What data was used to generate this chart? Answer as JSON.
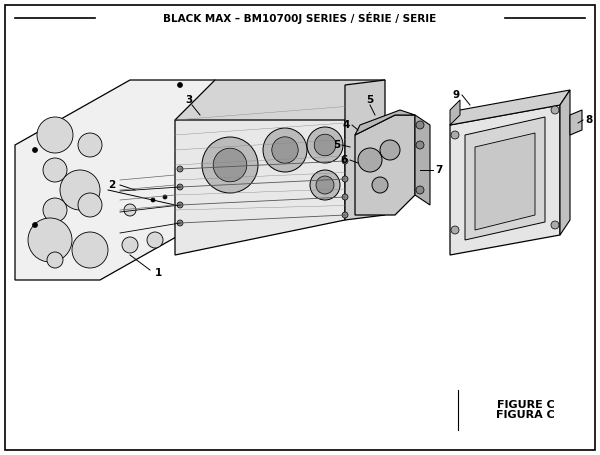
{
  "title": "BLACK MAX – BM10700J SERIES / SÉRIE / SERIE",
  "figure_label": "FIGURE C",
  "figura_label": "FIGURA C",
  "bg_color": "#ffffff",
  "border_color": "#000000",
  "line_color": "#000000",
  "part_labels": [
    "1",
    "2",
    "3",
    "4",
    "5",
    "5",
    "6",
    "7",
    "8",
    "9"
  ],
  "fig_width": 6.0,
  "fig_height": 4.55,
  "dpi": 100
}
